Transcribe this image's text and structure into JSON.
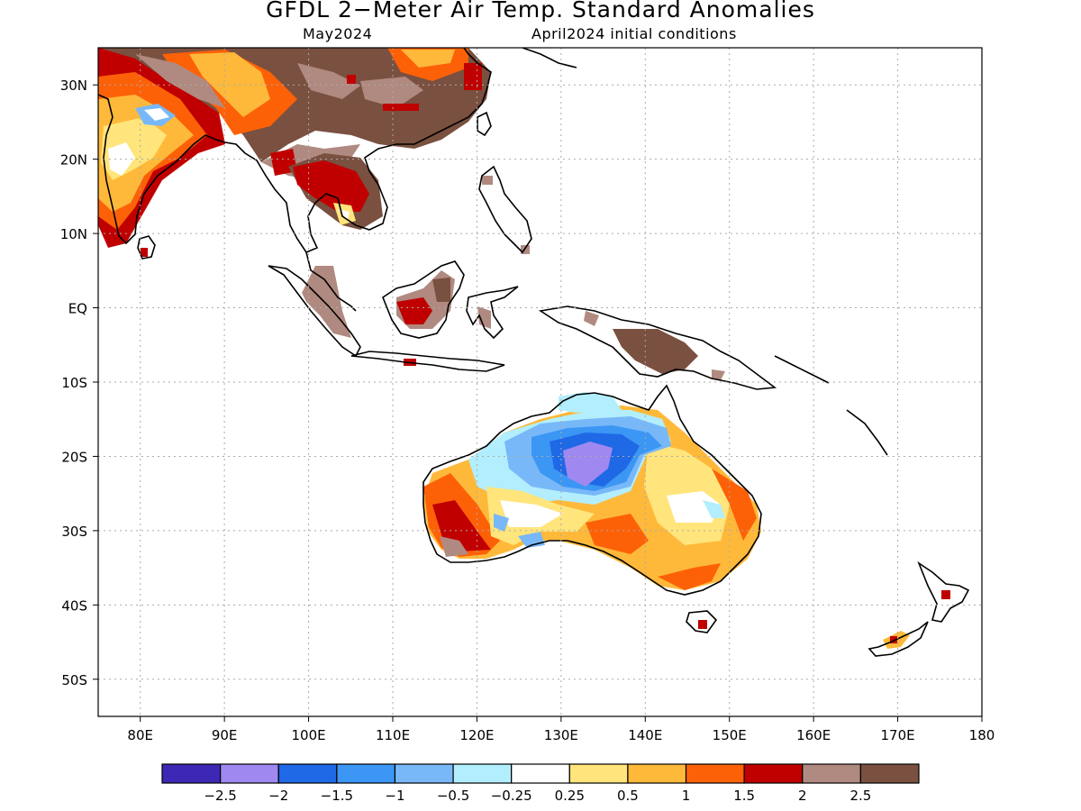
{
  "title": "GFDL 2−Meter Air Temp. Standard Anomalies",
  "valid_month": "May2024",
  "init_conditions": "April2024 initial conditions",
  "map": {
    "lon_range": [
      75,
      180
    ],
    "lat_range": [
      -55,
      35
    ],
    "x_ticks": [
      {
        "lon": 80,
        "label": "80E"
      },
      {
        "lon": 90,
        "label": "90E"
      },
      {
        "lon": 100,
        "label": "100E"
      },
      {
        "lon": 110,
        "label": "110E"
      },
      {
        "lon": 120,
        "label": "120E"
      },
      {
        "lon": 130,
        "label": "130E"
      },
      {
        "lon": 140,
        "label": "140E"
      },
      {
        "lon": 150,
        "label": "150E"
      },
      {
        "lon": 160,
        "label": "160E"
      },
      {
        "lon": 170,
        "label": "170E"
      },
      {
        "lon": 180,
        "label": "180"
      }
    ],
    "y_ticks": [
      {
        "lat": 30,
        "label": "30N"
      },
      {
        "lat": 20,
        "label": "20N"
      },
      {
        "lat": 10,
        "label": "10N"
      },
      {
        "lat": 0,
        "label": "EQ"
      },
      {
        "lat": -10,
        "label": "10S"
      },
      {
        "lat": -20,
        "label": "20S"
      },
      {
        "lat": -30,
        "label": "30S"
      },
      {
        "lat": -40,
        "label": "40S"
      },
      {
        "lat": -50,
        "label": "50S"
      }
    ],
    "grid": true
  },
  "colorbar": {
    "colors": [
      "#3c28b4",
      "#9f88f0",
      "#1f68e6",
      "#3c96f4",
      "#78b8f8",
      "#b2eefe",
      "#ffffff",
      "#ffe57c",
      "#ffb93a",
      "#fd6108",
      "#c00000",
      "#b08a80",
      "#7a5040"
    ],
    "labels": [
      "−2.5",
      "−2",
      "−1.5",
      "−1",
      "−0.5",
      "−0.25",
      "0.25",
      "0.5",
      "1",
      "1.5",
      "2",
      "2.5"
    ]
  }
}
